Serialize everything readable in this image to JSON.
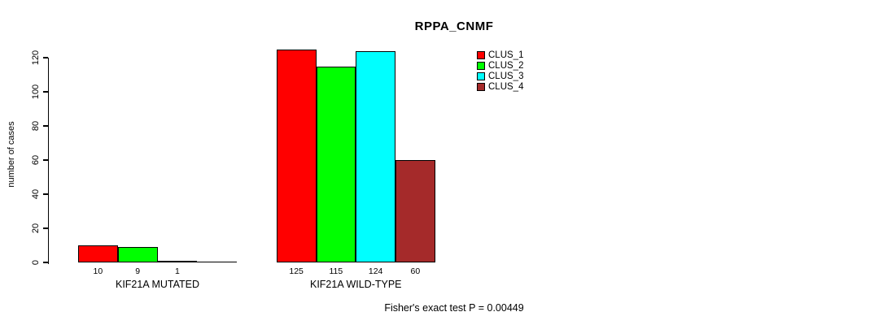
{
  "chart_data": {
    "type": "bar",
    "title": "RPPA_CNMF",
    "ylabel": "number of cases",
    "xlabel": "",
    "ylim": [
      0,
      130
    ],
    "yticks": [
      0,
      20,
      40,
      60,
      80,
      100,
      120
    ],
    "categories": [
      "KIF21A MUTATED",
      "KIF21A WILD-TYPE"
    ],
    "series": [
      {
        "name": "CLUS_1",
        "color": "#ff0000",
        "values": [
          10,
          125
        ]
      },
      {
        "name": "CLUS_2",
        "color": "#00ff00",
        "values": [
          9,
          115
        ]
      },
      {
        "name": "CLUS_3",
        "color": "#00ffff",
        "values": [
          1,
          124
        ]
      },
      {
        "name": "CLUS_4",
        "color": "#a52a2a",
        "values": [
          0,
          60
        ]
      }
    ],
    "bar_value_labels": [
      "10",
      "9",
      "1",
      "",
      "125",
      "115",
      "124",
      "60"
    ],
    "annotation": "Fisher's exact test P = 0.00449",
    "legend_position": "top-right",
    "grid": false,
    "axis_color": "#000000",
    "background_color": "#ffffff"
  }
}
